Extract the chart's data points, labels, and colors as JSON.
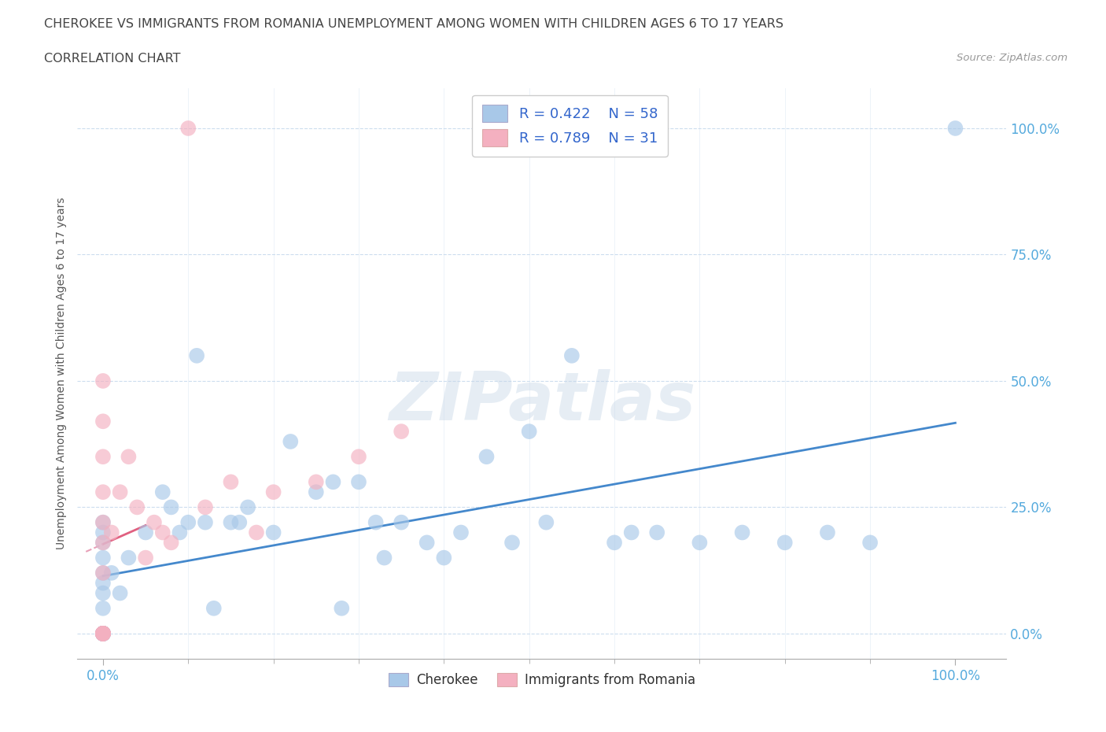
{
  "title_line1": "CHEROKEE VS IMMIGRANTS FROM ROMANIA UNEMPLOYMENT AMONG WOMEN WITH CHILDREN AGES 6 TO 17 YEARS",
  "title_line2": "CORRELATION CHART",
  "source_text": "Source: ZipAtlas.com",
  "ylabel": "Unemployment Among Women with Children Ages 6 to 17 years",
  "x_tick_labels_bottom": [
    "0.0%",
    "100.0%"
  ],
  "x_tick_positions_bottom": [
    0,
    100
  ],
  "x_minor_ticks": [
    10,
    20,
    30,
    40,
    50,
    60,
    70,
    80,
    90
  ],
  "y_tick_labels": [
    "0.0%",
    "25.0%",
    "50.0%",
    "75.0%",
    "100.0%"
  ],
  "y_tick_positions": [
    0,
    25,
    50,
    75,
    100
  ],
  "xlim": [
    -3,
    106
  ],
  "ylim": [
    -5,
    108
  ],
  "watermark": "ZIPatlas",
  "legend_R1": "R = 0.422",
  "legend_N1": "N = 58",
  "legend_R2": "R = 0.789",
  "legend_N2": "N = 31",
  "blue_color": "#a8c8e8",
  "pink_color": "#f4b0c0",
  "blue_line_color": "#4488cc",
  "pink_line_color": "#e06080",
  "pink_dash_color": "#e8a0b8",
  "legend_text_color": "#3366cc",
  "title_color": "#444444",
  "tick_color": "#55aadd",
  "grid_color": "#ccddee",
  "bg_color": "#ffffff",
  "cherokee_x": [
    0,
    0,
    0,
    0,
    0,
    0,
    0,
    0,
    0,
    0,
    0,
    0,
    0,
    0,
    0,
    0,
    0,
    0,
    1,
    2,
    3,
    5,
    7,
    8,
    9,
    10,
    11,
    12,
    13,
    15,
    16,
    17,
    20,
    22,
    25,
    27,
    28,
    30,
    32,
    33,
    35,
    38,
    40,
    42,
    45,
    48,
    50,
    52,
    55,
    60,
    62,
    65,
    70,
    75,
    80,
    85,
    90,
    100
  ],
  "cherokee_y": [
    0,
    0,
    0,
    0,
    0,
    0,
    0,
    0,
    0,
    0,
    5,
    8,
    10,
    12,
    15,
    18,
    20,
    22,
    12,
    8,
    15,
    20,
    28,
    25,
    20,
    22,
    55,
    22,
    5,
    22,
    22,
    25,
    20,
    38,
    28,
    30,
    5,
    30,
    22,
    15,
    22,
    18,
    15,
    20,
    35,
    18,
    40,
    22,
    55,
    18,
    20,
    20,
    18,
    20,
    18,
    20,
    18,
    100
  ],
  "romania_x": [
    0,
    0,
    0,
    0,
    0,
    0,
    0,
    0,
    0,
    0,
    0,
    0,
    0,
    0,
    0,
    1,
    2,
    3,
    4,
    5,
    6,
    7,
    8,
    10,
    12,
    15,
    18,
    20,
    25,
    30,
    35
  ],
  "romania_y": [
    0,
    0,
    0,
    0,
    0,
    0,
    0,
    0,
    12,
    18,
    22,
    28,
    35,
    42,
    50,
    20,
    28,
    35,
    25,
    15,
    22,
    20,
    18,
    100,
    25,
    30,
    20,
    28,
    30,
    35,
    40
  ]
}
